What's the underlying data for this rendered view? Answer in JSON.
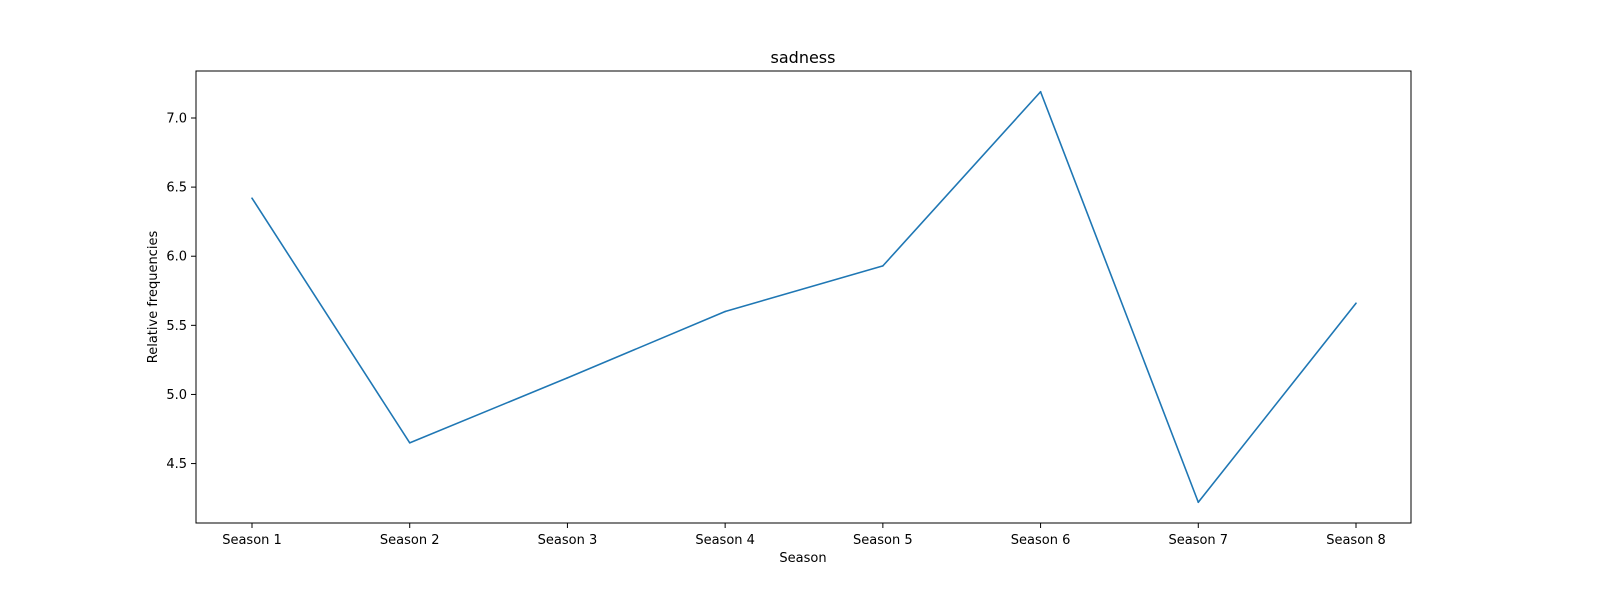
{
  "chart_data": {
    "type": "line",
    "title": "sadness",
    "xlabel": "Season",
    "ylabel": "Relative frequencies",
    "categories": [
      "Season 1",
      "Season 2",
      "Season 3",
      "Season 4",
      "Season 5",
      "Season 6",
      "Season 7",
      "Season 8"
    ],
    "series": [
      {
        "values": [
          6.42,
          4.65,
          5.12,
          5.6,
          5.93,
          7.19,
          4.22,
          5.66
        ],
        "color": "#1f77b4"
      }
    ],
    "ylim": [
      4.07,
      7.34
    ],
    "yticks": [
      4.5,
      5.0,
      5.5,
      6.0,
      6.5,
      7.0
    ],
    "ytick_labels": [
      "4.5",
      "5.0",
      "5.5",
      "6.0",
      "6.5",
      "7.0"
    ],
    "grid": false,
    "legend": "none"
  }
}
